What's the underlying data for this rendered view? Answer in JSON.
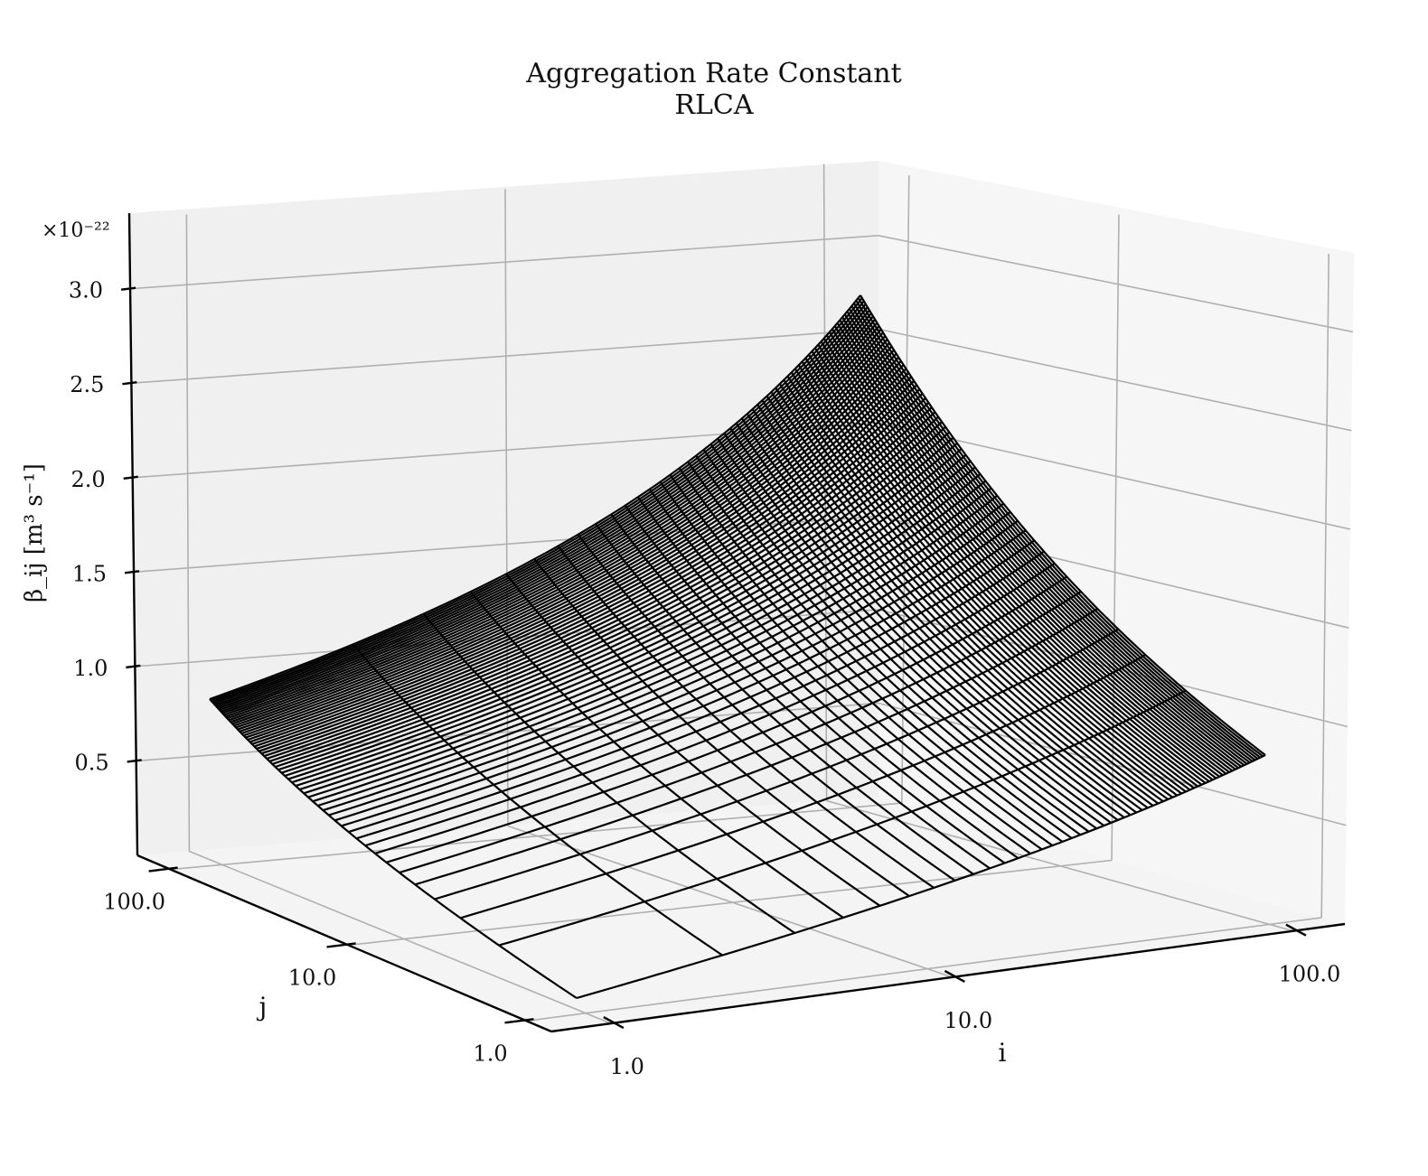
{
  "chart_data": {
    "type": "surface",
    "title": "Aggregation Rate Constant",
    "subtitle": "RLCA",
    "xlabel": "i",
    "ylabel": "j",
    "zlabel": "β_ij [m³ s⁻¹]",
    "x_scale": "log",
    "y_scale": "log",
    "x_ticks": [
      "1.0",
      "10.0",
      "100.0"
    ],
    "y_ticks": [
      "1.0",
      "10.0",
      "100.0"
    ],
    "z_ticks": [
      "0.5",
      "1.0",
      "1.5",
      "2.0",
      "2.5",
      "3.0"
    ],
    "z_multiplier": "×10⁻²²",
    "xlim": [
      1,
      100
    ],
    "ylim": [
      1,
      100
    ],
    "zlim": [
      0,
      3.4
    ],
    "grid": true,
    "surface_color": "#000000",
    "pane_colors": {
      "back": "#f0f0f0",
      "side": "#f6f6f6",
      "floor": "#f4f4f4"
    },
    "corner_values": [
      {
        "i": 1,
        "j": 1,
        "z": 0.0
      },
      {
        "i": 100,
        "j": 1,
        "z": 0.65
      },
      {
        "i": 1,
        "j": 100,
        "z": 0.8
      },
      {
        "i": 100,
        "j": 100,
        "z": 3.13
      }
    ]
  }
}
